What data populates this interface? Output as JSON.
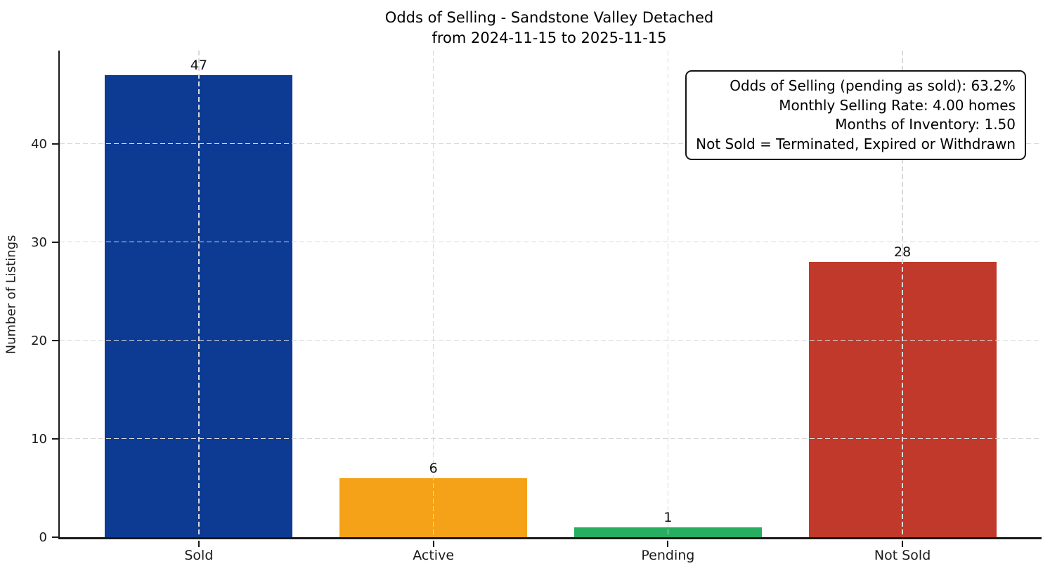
{
  "chart_data": {
    "type": "bar",
    "title": "Odds of Selling - Sandstone Valley Detached",
    "subtitle": "from 2024-11-15 to 2025-11-15",
    "xlabel": "",
    "ylabel": "Number of Listings",
    "categories": [
      "Sold",
      "Active",
      "Pending",
      "Not Sold"
    ],
    "values": [
      47,
      6,
      1,
      28
    ],
    "bar_colors": [
      "#0d3b94",
      "#f5a218",
      "#27ae60",
      "#c0392b"
    ],
    "ylim": [
      0,
      49.5
    ],
    "yticks": [
      0,
      10,
      20,
      30,
      40
    ],
    "grid": {
      "style": "dashed",
      "axes": "both",
      "color": "#d9d9d9",
      "drawn_above_bars": true
    },
    "value_labels_shown": true,
    "legend_position": "none",
    "annotation_box": {
      "position": "top-right",
      "text_align": "right",
      "lines": [
        "Odds of Selling (pending as sold): 63.2%",
        "Monthly Selling Rate: 4.00 homes",
        "Months of Inventory: 1.50",
        "Not Sold = Terminated, Expired or Withdrawn"
      ]
    }
  }
}
